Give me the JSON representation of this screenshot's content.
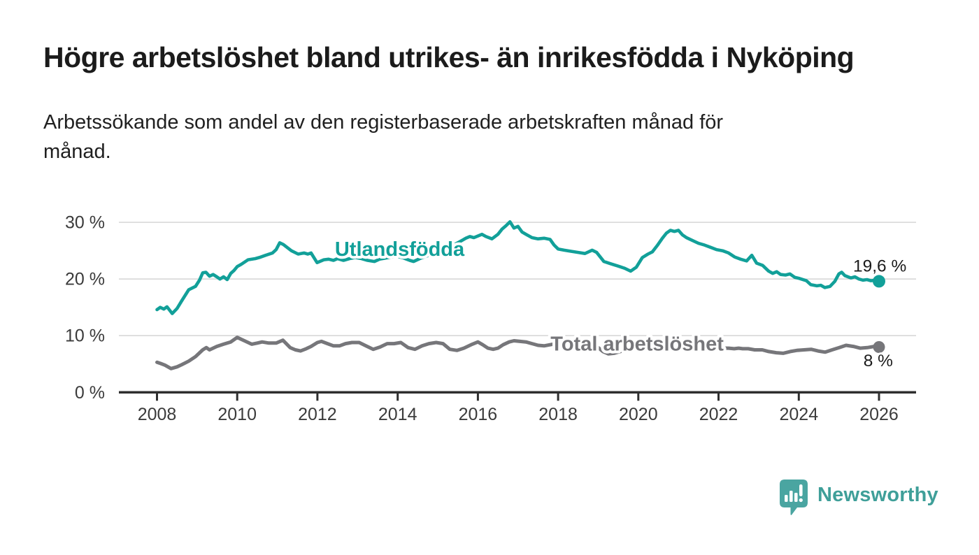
{
  "header": {
    "title": "Högre arbetslöshet bland utrikes- än inrikesfödda i Nyköping",
    "subtitle": "Arbetssökande som andel av den registerbaserade arbetskraften månad för månad."
  },
  "branding": {
    "logo_text": "Newsworthy",
    "logo_icon": "bar-chart-speech-bubble-icon"
  },
  "colors": {
    "accent_teal": "#12a099",
    "total_gray": "#76767a",
    "grid": "#d8d8d8",
    "axis": "#2f2f2f",
    "axis_text": "#3b3b3b",
    "value_text": "#1b1b1b",
    "logo_teal": "#4aa5a1",
    "logo_text_teal": "#3f9f99",
    "background": "#ffffff"
  },
  "chart_data": {
    "type": "line",
    "unit": "%",
    "grid": "horizontal",
    "legend_position": "inline-labels",
    "x_axis": {
      "range": [
        2007.9,
        2026.9
      ],
      "ticks": [
        2008,
        2010,
        2012,
        2014,
        2016,
        2018,
        2020,
        2022,
        2024,
        2026
      ]
    },
    "y_axis": {
      "range": [
        0,
        31
      ],
      "ticks": [
        {
          "value": 0,
          "label": "0 %"
        },
        {
          "value": 10,
          "label": "10 %"
        },
        {
          "value": 20,
          "label": "20 %"
        },
        {
          "value": 30,
          "label": "30 %"
        }
      ]
    },
    "series": [
      {
        "id": "utlandsfodda",
        "name": "Utlandsfödda",
        "color": "#12a099",
        "line_width": 4.6,
        "end_value_label": "19,6 %",
        "label_pos": {
          "x": 2014.05,
          "y": 25.35
        },
        "end_label_pos": {
          "x": 2026.02,
          "y": 21.3
        },
        "points": [
          [
            2008.0,
            14.6
          ],
          [
            2008.08,
            15.0
          ],
          [
            2008.17,
            14.7
          ],
          [
            2008.25,
            15.1
          ],
          [
            2008.38,
            13.9
          ],
          [
            2008.5,
            14.8
          ],
          [
            2008.62,
            16.2
          ],
          [
            2008.79,
            18.1
          ],
          [
            2008.96,
            18.7
          ],
          [
            2009.06,
            19.8
          ],
          [
            2009.14,
            21.1
          ],
          [
            2009.22,
            21.2
          ],
          [
            2009.31,
            20.5
          ],
          [
            2009.4,
            20.8
          ],
          [
            2009.49,
            20.4
          ],
          [
            2009.57,
            20.0
          ],
          [
            2009.66,
            20.4
          ],
          [
            2009.75,
            19.9
          ],
          [
            2009.84,
            21.0
          ],
          [
            2009.92,
            21.5
          ],
          [
            2010.0,
            22.2
          ],
          [
            2010.1,
            22.6
          ],
          [
            2010.27,
            23.4
          ],
          [
            2010.45,
            23.6
          ],
          [
            2010.55,
            23.8
          ],
          [
            2010.71,
            24.2
          ],
          [
            2010.88,
            24.6
          ],
          [
            2010.97,
            25.2
          ],
          [
            2011.06,
            26.4
          ],
          [
            2011.15,
            26.1
          ],
          [
            2011.35,
            25.0
          ],
          [
            2011.52,
            24.4
          ],
          [
            2011.67,
            24.6
          ],
          [
            2011.76,
            24.4
          ],
          [
            2011.84,
            24.6
          ],
          [
            2011.99,
            22.9
          ],
          [
            2012.16,
            23.4
          ],
          [
            2012.28,
            23.5
          ],
          [
            2012.4,
            23.3
          ],
          [
            2012.5,
            23.6
          ],
          [
            2012.65,
            23.3
          ],
          [
            2012.8,
            23.6
          ],
          [
            2012.95,
            23.8
          ],
          [
            2013.1,
            23.6
          ],
          [
            2013.25,
            23.3
          ],
          [
            2013.42,
            23.1
          ],
          [
            2013.55,
            23.5
          ],
          [
            2013.7,
            23.7
          ],
          [
            2013.85,
            23.9
          ],
          [
            2014.0,
            24.0
          ],
          [
            2014.15,
            23.7
          ],
          [
            2014.3,
            23.3
          ],
          [
            2014.4,
            23.1
          ],
          [
            2014.55,
            23.6
          ],
          [
            2014.7,
            24.0
          ],
          [
            2014.85,
            24.4
          ],
          [
            2015.0,
            24.8
          ],
          [
            2015.15,
            25.2
          ],
          [
            2015.3,
            25.7
          ],
          [
            2015.45,
            26.2
          ],
          [
            2015.6,
            26.8
          ],
          [
            2015.7,
            27.2
          ],
          [
            2015.8,
            27.5
          ],
          [
            2015.9,
            27.3
          ],
          [
            2016.0,
            27.6
          ],
          [
            2016.1,
            27.9
          ],
          [
            2016.2,
            27.5
          ],
          [
            2016.35,
            27.1
          ],
          [
            2016.5,
            27.9
          ],
          [
            2016.6,
            28.8
          ],
          [
            2016.7,
            29.4
          ],
          [
            2016.8,
            30.1
          ],
          [
            2016.9,
            29.0
          ],
          [
            2017.0,
            29.3
          ],
          [
            2017.1,
            28.3
          ],
          [
            2017.2,
            27.9
          ],
          [
            2017.35,
            27.3
          ],
          [
            2017.5,
            27.1
          ],
          [
            2017.65,
            27.2
          ],
          [
            2017.8,
            27.0
          ],
          [
            2017.9,
            26.0
          ],
          [
            2018.0,
            25.3
          ],
          [
            2018.15,
            25.1
          ],
          [
            2018.32,
            24.9
          ],
          [
            2018.5,
            24.7
          ],
          [
            2018.67,
            24.5
          ],
          [
            2018.85,
            25.1
          ],
          [
            2018.96,
            24.7
          ],
          [
            2019.14,
            23.1
          ],
          [
            2019.31,
            22.7
          ],
          [
            2019.49,
            22.3
          ],
          [
            2019.66,
            21.9
          ],
          [
            2019.81,
            21.4
          ],
          [
            2019.95,
            22.1
          ],
          [
            2020.1,
            23.8
          ],
          [
            2020.24,
            24.4
          ],
          [
            2020.35,
            24.8
          ],
          [
            2020.47,
            25.9
          ],
          [
            2020.6,
            27.2
          ],
          [
            2020.7,
            28.1
          ],
          [
            2020.8,
            28.6
          ],
          [
            2020.9,
            28.4
          ],
          [
            2021.0,
            28.6
          ],
          [
            2021.1,
            27.8
          ],
          [
            2021.2,
            27.3
          ],
          [
            2021.35,
            26.8
          ],
          [
            2021.5,
            26.3
          ],
          [
            2021.65,
            26.0
          ],
          [
            2021.8,
            25.6
          ],
          [
            2021.95,
            25.2
          ],
          [
            2022.1,
            25.0
          ],
          [
            2022.25,
            24.6
          ],
          [
            2022.4,
            23.9
          ],
          [
            2022.55,
            23.5
          ],
          [
            2022.7,
            23.2
          ],
          [
            2022.83,
            24.2
          ],
          [
            2022.95,
            22.8
          ],
          [
            2023.1,
            22.4
          ],
          [
            2023.25,
            21.4
          ],
          [
            2023.35,
            21.0
          ],
          [
            2023.45,
            21.3
          ],
          [
            2023.55,
            20.8
          ],
          [
            2023.67,
            20.7
          ],
          [
            2023.78,
            20.9
          ],
          [
            2023.9,
            20.3
          ],
          [
            2024.02,
            20.1
          ],
          [
            2024.19,
            19.7
          ],
          [
            2024.3,
            19.0
          ],
          [
            2024.45,
            18.8
          ],
          [
            2024.55,
            18.9
          ],
          [
            2024.65,
            18.5
          ],
          [
            2024.78,
            18.7
          ],
          [
            2024.9,
            19.6
          ],
          [
            2025.0,
            20.9
          ],
          [
            2025.07,
            21.2
          ],
          [
            2025.15,
            20.6
          ],
          [
            2025.3,
            20.2
          ],
          [
            2025.4,
            20.4
          ],
          [
            2025.5,
            20.0
          ],
          [
            2025.6,
            19.8
          ],
          [
            2025.7,
            19.9
          ],
          [
            2025.8,
            19.7
          ],
          [
            2025.9,
            19.8
          ],
          [
            2026.0,
            19.6
          ]
        ]
      },
      {
        "id": "total-arbetsloshet",
        "name": "Total arbetslöshet",
        "color": "#76767a",
        "line_width": 5,
        "end_value_label": "8 %",
        "label_pos": {
          "x": 2019.97,
          "y": 8.6
        },
        "end_label_pos": {
          "x": 2025.98,
          "y": 4.6
        },
        "points": [
          [
            2008.0,
            5.3
          ],
          [
            2008.09,
            5.1
          ],
          [
            2008.2,
            4.8
          ],
          [
            2008.35,
            4.2
          ],
          [
            2008.5,
            4.5
          ],
          [
            2008.62,
            4.9
          ],
          [
            2008.79,
            5.5
          ],
          [
            2008.96,
            6.3
          ],
          [
            2009.14,
            7.5
          ],
          [
            2009.23,
            7.9
          ],
          [
            2009.31,
            7.5
          ],
          [
            2009.49,
            8.1
          ],
          [
            2009.66,
            8.5
          ],
          [
            2009.84,
            8.9
          ],
          [
            2010.0,
            9.7
          ],
          [
            2010.18,
            9.1
          ],
          [
            2010.36,
            8.5
          ],
          [
            2010.5,
            8.7
          ],
          [
            2010.62,
            8.9
          ],
          [
            2010.79,
            8.7
          ],
          [
            2010.97,
            8.7
          ],
          [
            2011.14,
            9.2
          ],
          [
            2011.32,
            7.9
          ],
          [
            2011.45,
            7.5
          ],
          [
            2011.58,
            7.3
          ],
          [
            2011.72,
            7.7
          ],
          [
            2011.84,
            8.1
          ],
          [
            2012.0,
            8.8
          ],
          [
            2012.1,
            9.0
          ],
          [
            2012.25,
            8.6
          ],
          [
            2012.4,
            8.2
          ],
          [
            2012.55,
            8.2
          ],
          [
            2012.7,
            8.6
          ],
          [
            2012.86,
            8.8
          ],
          [
            2013.04,
            8.8
          ],
          [
            2013.21,
            8.2
          ],
          [
            2013.39,
            7.6
          ],
          [
            2013.56,
            8.0
          ],
          [
            2013.74,
            8.6
          ],
          [
            2013.91,
            8.6
          ],
          [
            2014.08,
            8.8
          ],
          [
            2014.26,
            7.9
          ],
          [
            2014.43,
            7.6
          ],
          [
            2014.61,
            8.2
          ],
          [
            2014.78,
            8.6
          ],
          [
            2014.96,
            8.8
          ],
          [
            2015.13,
            8.6
          ],
          [
            2015.3,
            7.6
          ],
          [
            2015.48,
            7.4
          ],
          [
            2015.65,
            7.8
          ],
          [
            2015.83,
            8.4
          ],
          [
            2016.0,
            8.9
          ],
          [
            2016.12,
            8.4
          ],
          [
            2016.25,
            7.8
          ],
          [
            2016.38,
            7.6
          ],
          [
            2016.5,
            7.8
          ],
          [
            2016.63,
            8.4
          ],
          [
            2016.78,
            8.9
          ],
          [
            2016.9,
            9.1
          ],
          [
            2017.05,
            9.0
          ],
          [
            2017.2,
            8.9
          ],
          [
            2017.35,
            8.6
          ],
          [
            2017.5,
            8.3
          ],
          [
            2017.65,
            8.2
          ],
          [
            2017.8,
            8.4
          ],
          [
            2017.95,
            8.6
          ],
          [
            2018.1,
            8.4
          ],
          [
            2018.25,
            8.1
          ],
          [
            2018.4,
            7.9
          ],
          [
            2018.55,
            7.8
          ],
          [
            2018.7,
            8.0
          ],
          [
            2018.85,
            8.1
          ],
          [
            2019.0,
            7.9
          ],
          [
            2019.12,
            7.2
          ],
          [
            2019.25,
            6.8
          ],
          [
            2019.4,
            6.9
          ],
          [
            2019.55,
            7.2
          ],
          [
            2019.7,
            7.6
          ],
          [
            2019.85,
            7.9
          ],
          [
            2020.0,
            8.1
          ],
          [
            2020.15,
            8.4
          ],
          [
            2020.3,
            8.7
          ],
          [
            2020.45,
            8.9
          ],
          [
            2020.6,
            8.9
          ],
          [
            2020.75,
            8.8
          ],
          [
            2020.9,
            8.7
          ],
          [
            2021.05,
            8.6
          ],
          [
            2021.2,
            8.4
          ],
          [
            2021.35,
            8.1
          ],
          [
            2021.5,
            7.9
          ],
          [
            2021.65,
            7.9
          ],
          [
            2021.8,
            7.9
          ],
          [
            2021.95,
            7.8
          ],
          [
            2022.1,
            7.8
          ],
          [
            2022.25,
            7.8
          ],
          [
            2022.39,
            7.7
          ],
          [
            2022.5,
            7.8
          ],
          [
            2022.6,
            7.7
          ],
          [
            2022.74,
            7.7
          ],
          [
            2022.9,
            7.5
          ],
          [
            2023.09,
            7.5
          ],
          [
            2023.25,
            7.2
          ],
          [
            2023.44,
            7.0
          ],
          [
            2023.61,
            6.9
          ],
          [
            2023.79,
            7.2
          ],
          [
            2023.95,
            7.4
          ],
          [
            2024.13,
            7.5
          ],
          [
            2024.31,
            7.6
          ],
          [
            2024.48,
            7.3
          ],
          [
            2024.66,
            7.1
          ],
          [
            2024.83,
            7.5
          ],
          [
            2025.01,
            7.9
          ],
          [
            2025.18,
            8.3
          ],
          [
            2025.36,
            8.1
          ],
          [
            2025.53,
            7.8
          ],
          [
            2025.71,
            7.9
          ],
          [
            2025.88,
            8.1
          ],
          [
            2026.0,
            8.0
          ]
        ]
      }
    ]
  }
}
